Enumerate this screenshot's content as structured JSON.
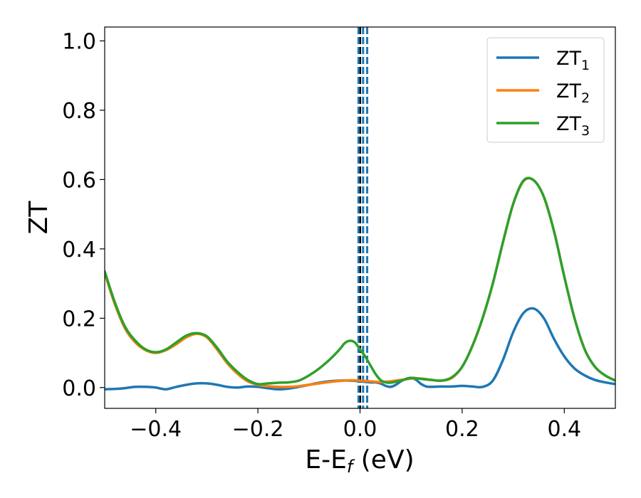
{
  "chart_data": {
    "type": "line",
    "xlabel": "E-E",
    "xlabel_sub": "f",
    "xlabel_unit": " (eV)",
    "ylabel": "ZT",
    "xlim": [
      -0.5,
      0.5
    ],
    "ylim": [
      -0.06,
      1.04
    ],
    "xticks": [
      -0.4,
      -0.2,
      0.0,
      0.2,
      0.4
    ],
    "xtick_labels": [
      "−0.4",
      "−0.2",
      "0.0",
      "0.2",
      "0.4"
    ],
    "yticks": [
      0.0,
      0.2,
      0.4,
      0.6,
      0.8,
      1.0
    ],
    "ytick_labels": [
      "0.0",
      "0.2",
      "0.4",
      "0.6",
      "0.8",
      "1.0"
    ],
    "grid": false,
    "legend_position": "top-right",
    "vlines": [
      {
        "x": 0.0,
        "color": "#000000",
        "style": "dashed"
      },
      {
        "x": -0.003,
        "color": "#1f77b4",
        "style": "dashed"
      },
      {
        "x": 0.006,
        "color": "#1f77b4",
        "style": "dashed"
      },
      {
        "x": 0.014,
        "color": "#1f77b4",
        "style": "dashed"
      }
    ],
    "series": [
      {
        "name": "ZT",
        "name_sub": "1",
        "color": "#1f77b4",
        "x": [
          -0.5,
          -0.47,
          -0.44,
          -0.42,
          -0.4,
          -0.38,
          -0.36,
          -0.34,
          -0.32,
          -0.3,
          -0.28,
          -0.26,
          -0.24,
          -0.22,
          -0.2,
          -0.18,
          -0.16,
          -0.14,
          -0.12,
          -0.1,
          -0.08,
          -0.06,
          -0.04,
          -0.02,
          0.0,
          0.02,
          0.03,
          0.04,
          0.05,
          0.06,
          0.07,
          0.08,
          0.09,
          0.1,
          0.11,
          0.12,
          0.13,
          0.14,
          0.16,
          0.18,
          0.2,
          0.22,
          0.24,
          0.26,
          0.28,
          0.3,
          0.32,
          0.34,
          0.36,
          0.38,
          0.4,
          0.42,
          0.44,
          0.46,
          0.48,
          0.5
        ],
        "y": [
          -0.005,
          -0.003,
          0.002,
          0.002,
          0.0,
          -0.005,
          0.002,
          0.008,
          0.012,
          0.012,
          0.008,
          0.002,
          0.0,
          0.003,
          0.002,
          -0.002,
          -0.005,
          -0.003,
          0.002,
          0.008,
          0.014,
          0.018,
          0.02,
          0.02,
          0.018,
          0.015,
          0.015,
          0.012,
          0.005,
          0.002,
          0.008,
          0.018,
          0.025,
          0.028,
          0.022,
          0.01,
          0.003,
          0.002,
          0.003,
          0.003,
          0.005,
          0.003,
          0.002,
          0.02,
          0.08,
          0.16,
          0.215,
          0.228,
          0.2,
          0.14,
          0.09,
          0.055,
          0.035,
          0.022,
          0.015,
          0.01
        ]
      },
      {
        "name": "ZT",
        "name_sub": "2",
        "color": "#ff7f0e",
        "x": [
          -0.5,
          -0.48,
          -0.46,
          -0.44,
          -0.42,
          -0.4,
          -0.38,
          -0.36,
          -0.34,
          -0.32,
          -0.3,
          -0.28,
          -0.26,
          -0.24,
          -0.22,
          -0.2,
          -0.18,
          -0.16,
          -0.14,
          -0.12,
          -0.1,
          -0.08,
          -0.06,
          -0.04,
          -0.02,
          0.0,
          0.02,
          0.04,
          0.06,
          0.08,
          0.1,
          0.12,
          0.14,
          0.16,
          0.18,
          0.2,
          0.22,
          0.24,
          0.26,
          0.28,
          0.3,
          0.32,
          0.34,
          0.36,
          0.38,
          0.4,
          0.42,
          0.44,
          0.46,
          0.48,
          0.5
        ],
        "y": [
          0.33,
          0.24,
          0.17,
          0.13,
          0.108,
          0.1,
          0.108,
          0.125,
          0.145,
          0.155,
          0.145,
          0.11,
          0.07,
          0.04,
          0.018,
          0.008,
          0.004,
          0.002,
          0.002,
          0.004,
          0.008,
          0.012,
          0.016,
          0.019,
          0.021,
          0.02,
          0.018,
          0.016,
          0.018,
          0.022,
          0.026,
          0.026,
          0.022,
          0.02,
          0.028,
          0.06,
          0.12,
          0.2,
          0.3,
          0.42,
          0.53,
          0.595,
          0.598,
          0.55,
          0.45,
          0.32,
          0.2,
          0.11,
          0.06,
          0.035,
          0.02
        ]
      },
      {
        "name": "ZT",
        "name_sub": "3",
        "color": "#2ca02c",
        "x": [
          -0.5,
          -0.48,
          -0.46,
          -0.44,
          -0.42,
          -0.4,
          -0.38,
          -0.36,
          -0.34,
          -0.32,
          -0.3,
          -0.28,
          -0.26,
          -0.24,
          -0.22,
          -0.2,
          -0.18,
          -0.16,
          -0.14,
          -0.12,
          -0.1,
          -0.08,
          -0.06,
          -0.04,
          -0.03,
          -0.02,
          -0.01,
          0.0,
          0.01,
          0.02,
          0.03,
          0.04,
          0.05,
          0.06,
          0.07,
          0.08,
          0.09,
          0.1,
          0.11,
          0.12,
          0.14,
          0.16,
          0.18,
          0.2,
          0.22,
          0.24,
          0.26,
          0.28,
          0.3,
          0.32,
          0.34,
          0.36,
          0.38,
          0.4,
          0.42,
          0.44,
          0.46,
          0.48,
          0.5
        ],
        "y": [
          0.335,
          0.245,
          0.175,
          0.135,
          0.11,
          0.102,
          0.11,
          0.13,
          0.15,
          0.157,
          0.148,
          0.115,
          0.075,
          0.045,
          0.022,
          0.01,
          0.012,
          0.014,
          0.015,
          0.02,
          0.035,
          0.055,
          0.08,
          0.11,
          0.128,
          0.135,
          0.13,
          0.11,
          0.09,
          0.065,
          0.04,
          0.022,
          0.015,
          0.014,
          0.017,
          0.02,
          0.024,
          0.028,
          0.027,
          0.025,
          0.022,
          0.02,
          0.03,
          0.06,
          0.12,
          0.2,
          0.3,
          0.42,
          0.53,
          0.597,
          0.598,
          0.55,
          0.45,
          0.32,
          0.2,
          0.11,
          0.06,
          0.035,
          0.02
        ]
      }
    ]
  }
}
